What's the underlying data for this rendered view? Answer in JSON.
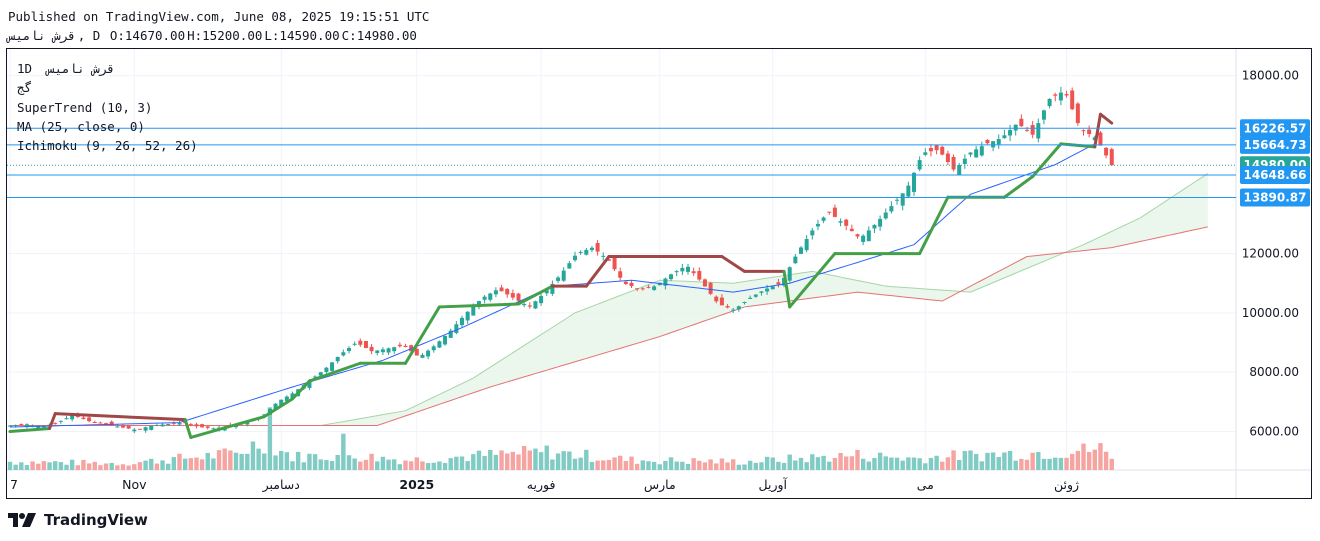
{
  "header": {
    "published": "Published on TradingView.com, June 08, 2025 19:15:51 UTC",
    "symbol": "قرش نامیس",
    "interval": ", D",
    "o": "O:14670.00",
    "h": "H:15200.00",
    "l": "L:14590.00",
    "c": "C:14980.00"
  },
  "legend": {
    "line1": "1D  قرش نامیس",
    "line2": "گج",
    "supertrend": "SuperTrend (10, 3)",
    "ma": "MA (25, close, 0)",
    "ichimoku": "Ichimoku (9, 26, 52, 26)"
  },
  "footer": {
    "brand": "TradingView"
  },
  "colors": {
    "up": "#26a69a",
    "down": "#ef5350",
    "ma": "#2962ff",
    "supertrend_up": "#43a047",
    "supertrend_down": "#a04848",
    "cloud_fill": "#e8f5e9",
    "span_a": "#a5d6a7",
    "span_b": "#e57373",
    "level_line": "#2196f3"
  },
  "chart_data": {
    "type": "candlestick",
    "ylim": [
      4700,
      18900
    ],
    "y_ticks": [
      {
        "value": 18000,
        "label": "18000.00"
      },
      {
        "value": 12000,
        "label": "12000.00"
      },
      {
        "value": 10000,
        "label": "10000.00"
      },
      {
        "value": 8000,
        "label": "8000.00"
      },
      {
        "value": 6000,
        "label": "6000.00"
      }
    ],
    "x_labels": [
      {
        "bar": 0,
        "label": "7",
        "bold": false
      },
      {
        "bar": 22,
        "label": "Nov",
        "bold": false
      },
      {
        "bar": 48,
        "label": "دسامبر",
        "bold": false
      },
      {
        "bar": 72,
        "label": "2025",
        "bold": true
      },
      {
        "bar": 94,
        "label": "فوریه",
        "bold": false
      },
      {
        "bar": 115,
        "label": "مارس",
        "bold": false
      },
      {
        "bar": 135,
        "label": "آوریل",
        "bold": false
      },
      {
        "bar": 162,
        "label": "می",
        "bold": false
      },
      {
        "bar": 187,
        "label": "ژوئن",
        "bold": false
      }
    ],
    "price_levels": [
      {
        "value": 16226.57,
        "label": "16226.57",
        "color": "#2196f3",
        "style": "solid"
      },
      {
        "value": 15664.73,
        "label": "15664.73",
        "color": "#2196f3",
        "style": "solid"
      },
      {
        "value": 14980.0,
        "label": "14980.00",
        "color": "#26a69a",
        "style": "dotted"
      },
      {
        "value": 14648.66,
        "label": "14648.66",
        "color": "#2196f3",
        "style": "solid"
      },
      {
        "value": 13890.87,
        "label": "13890.87",
        "color": "#2196f3",
        "style": "solid"
      }
    ],
    "ohlc_anchor_closes": [
      6200,
      6250,
      6150,
      6300,
      6550,
      6350,
      6250,
      6150,
      6050,
      6200,
      6250,
      6300,
      6150,
      6100,
      6200,
      6300,
      6500,
      7000,
      7300,
      7700,
      8100,
      8600,
      9000,
      8700,
      8800,
      8900,
      8500,
      8900,
      9400,
      10000,
      10500,
      10800,
      10500,
      10200,
      10700,
      11300,
      12000,
      12200,
      11800,
      11000,
      10800,
      10900,
      11300,
      11600,
      11000,
      10300,
      10100,
      10500,
      10800,
      11000,
      12000,
      12800,
      13400,
      13000,
      12500,
      13000,
      13600,
      14200,
      15400,
      15500,
      14800,
      15400,
      15700,
      15900,
      16400,
      16000,
      17200,
      17500,
      16200,
      15900,
      14980
    ],
    "supertrend_anchors": [
      [
        0,
        6000,
        "up"
      ],
      [
        7,
        6100,
        "up"
      ],
      [
        8,
        6600,
        "down"
      ],
      [
        31,
        6400,
        "down"
      ],
      [
        32,
        5800,
        "up"
      ],
      [
        45,
        6500,
        "up"
      ],
      [
        50,
        7100,
        "up"
      ],
      [
        53,
        7700,
        "up"
      ],
      [
        62,
        8300,
        "up"
      ],
      [
        70,
        8300,
        "up"
      ],
      [
        76,
        10200,
        "up"
      ],
      [
        90,
        10300,
        "up"
      ],
      [
        96,
        10900,
        "up"
      ],
      [
        102,
        10900,
        "down"
      ],
      [
        106,
        11900,
        "down"
      ],
      [
        126,
        11900,
        "down"
      ],
      [
        130,
        11400,
        "down"
      ],
      [
        137,
        11400,
        "down"
      ],
      [
        138,
        10200,
        "up"
      ],
      [
        146,
        12000,
        "up"
      ],
      [
        161,
        12000,
        "up"
      ],
      [
        166,
        13900,
        "up"
      ],
      [
        176,
        13900,
        "up"
      ],
      [
        181,
        14600,
        "up"
      ],
      [
        186,
        15700,
        "up"
      ],
      [
        192,
        15600,
        "up"
      ],
      [
        193,
        16700,
        "down"
      ],
      [
        195,
        16400,
        "down"
      ]
    ],
    "ma_anchors": [
      [
        0,
        6150
      ],
      [
        30,
        6300
      ],
      [
        50,
        7500
      ],
      [
        66,
        8400
      ],
      [
        80,
        9500
      ],
      [
        96,
        10900
      ],
      [
        110,
        11100
      ],
      [
        128,
        10700
      ],
      [
        138,
        11000
      ],
      [
        150,
        11700
      ],
      [
        160,
        12300
      ],
      [
        170,
        14000
      ],
      [
        185,
        15000
      ],
      [
        192,
        15700
      ]
    ],
    "span_a_anchors": [
      [
        0,
        6200
      ],
      [
        55,
        6200
      ],
      [
        70,
        6700
      ],
      [
        82,
        7800
      ],
      [
        100,
        10000
      ],
      [
        115,
        11100
      ],
      [
        128,
        11000
      ],
      [
        142,
        11400
      ],
      [
        155,
        10900
      ],
      [
        170,
        10700
      ],
      [
        190,
        12300
      ],
      [
        200,
        13200
      ],
      [
        212,
        14700
      ]
    ],
    "span_b_anchors": [
      [
        0,
        6200
      ],
      [
        65,
        6200
      ],
      [
        85,
        7500
      ],
      [
        115,
        9200
      ],
      [
        130,
        10200
      ],
      [
        150,
        10700
      ],
      [
        165,
        10400
      ],
      [
        180,
        11900
      ],
      [
        195,
        12200
      ],
      [
        212,
        12900
      ]
    ],
    "volume_anchors": [
      [
        0,
        0.25
      ],
      [
        20,
        0.2
      ],
      [
        40,
        0.5
      ],
      [
        45,
        0.9
      ],
      [
        50,
        0.4
      ],
      [
        60,
        0.45
      ],
      [
        70,
        0.3
      ],
      [
        80,
        0.4
      ],
      [
        95,
        0.55
      ],
      [
        110,
        0.3
      ],
      [
        130,
        0.25
      ],
      [
        140,
        0.35
      ],
      [
        150,
        0.45
      ],
      [
        160,
        0.35
      ],
      [
        170,
        0.45
      ],
      [
        185,
        0.55
      ],
      [
        193,
        0.65
      ],
      [
        195,
        0.35
      ]
    ],
    "last_price": 14980.0
  }
}
